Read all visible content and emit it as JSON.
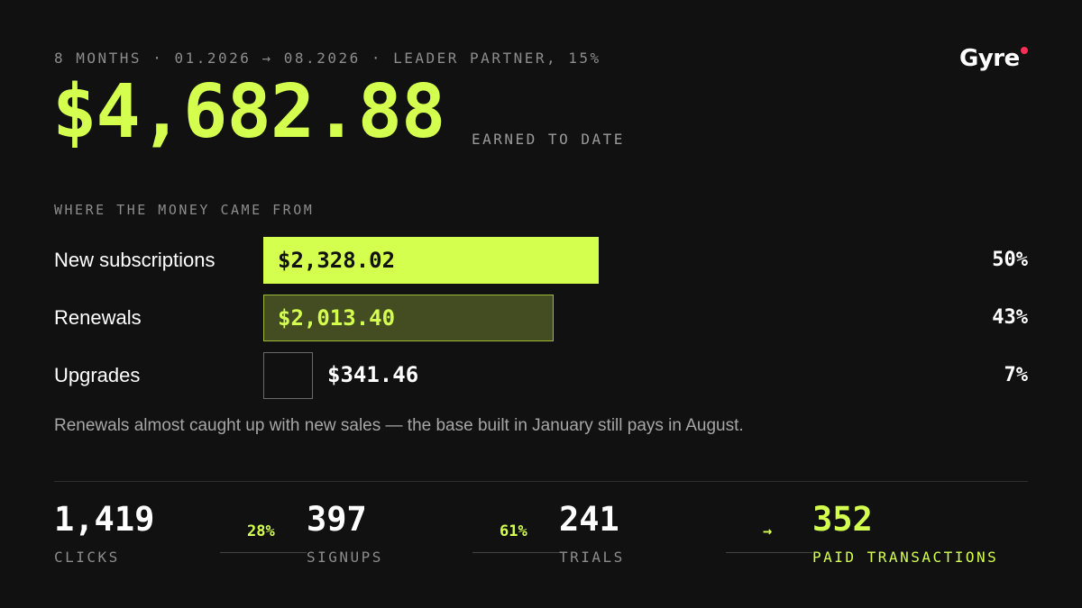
{
  "header": {
    "meta": "8 MONTHS · 01.2026 → 08.2026 · LEADER PARTNER, 15%",
    "brand": "Gyre"
  },
  "hero": {
    "amount": "$4,682.88",
    "caption": "EARNED TO DATE"
  },
  "breakdown": {
    "title": "WHERE THE MONEY CAME FROM",
    "rows": [
      {
        "label": "New subscriptions",
        "value": "$2,328.02",
        "pct": "50%",
        "share": 0.5
      },
      {
        "label": "Renewals",
        "value": "$2,013.40",
        "pct": "43%",
        "share": 0.43
      },
      {
        "label": "Upgrades",
        "value": "$341.46",
        "pct": "7%",
        "share": 0.07
      }
    ],
    "note": "Renewals almost caught up with new sales — the base built in January still pays in August."
  },
  "funnel": {
    "steps": [
      {
        "value": "1,419",
        "label": "CLICKS"
      },
      {
        "value": "397",
        "label": "SIGNUPS"
      },
      {
        "value": "241",
        "label": "TRIALS"
      },
      {
        "value": "352",
        "label": "PAID TRANSACTIONS"
      }
    ],
    "conversions": [
      "28%",
      "61%",
      "→"
    ]
  },
  "colors": {
    "accent": "#d4ff4f",
    "background": "#111111",
    "brand_dot": "#ff2d55"
  }
}
